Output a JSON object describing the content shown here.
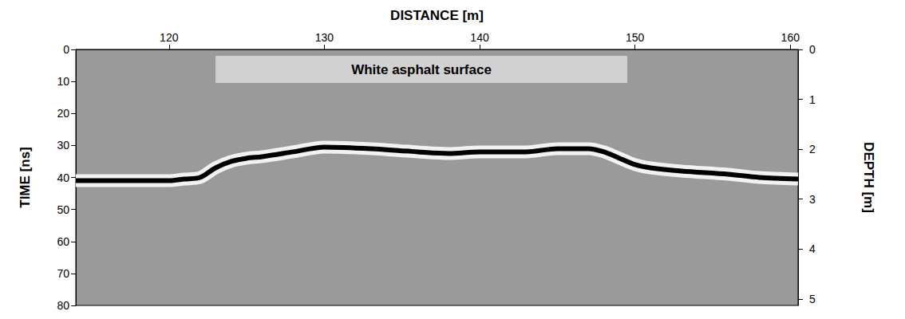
{
  "chart_data": {
    "type": "line",
    "xlabel": "DISTANCE [m]",
    "ylabel": "TIME [ns]",
    "y2label": "DEPTH [m]",
    "x": [
      114,
      116,
      118,
      120,
      121,
      122,
      123,
      124,
      125,
      126,
      128,
      130,
      133,
      136,
      138,
      140,
      143,
      145,
      147,
      148,
      149,
      150,
      151,
      153,
      156,
      158,
      160.5
    ],
    "series": [
      {
        "color": "#000000",
        "values": [
          41,
          41,
          41,
          41,
          40.5,
          40,
          37,
          35,
          34,
          33.5,
          32,
          30.5,
          31,
          32,
          32.5,
          32,
          32,
          31,
          31,
          32,
          34,
          36,
          37,
          38,
          39,
          40,
          40.5
        ]
      }
    ],
    "xlim": [
      114,
      160.5
    ],
    "xticks": [
      120,
      130,
      140,
      150,
      160
    ],
    "ylim": [
      0,
      80
    ],
    "yticks": [
      0,
      10,
      20,
      30,
      40,
      50,
      60,
      70,
      80
    ],
    "y2lim": [
      0,
      5.13
    ],
    "y2ticks": [
      0,
      1,
      2,
      3,
      4,
      5
    ],
    "annotations": [
      {
        "text": "White asphalt surface",
        "x": [
          123,
          149.5
        ]
      }
    ],
    "grid": false
  }
}
